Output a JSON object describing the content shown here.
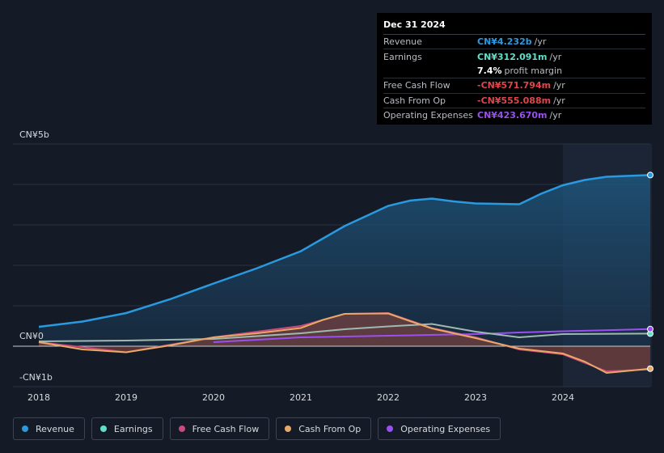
{
  "tooltip": {
    "date": "Dec 31 2024",
    "rows": [
      {
        "label": "Revenue",
        "value": "CN¥4.232b",
        "unit": "/yr",
        "color": "#2a9ae0"
      },
      {
        "label": "Earnings",
        "value": "CN¥312.091m",
        "unit": "/yr",
        "color": "#5fe0cb"
      },
      {
        "label": "",
        "value": "7.4%",
        "unit": "profit margin",
        "color": "#ffffff"
      },
      {
        "label": "Free Cash Flow",
        "value": "-CN¥571.794m",
        "unit": "/yr",
        "color": "#e0454c"
      },
      {
        "label": "Cash From Op",
        "value": "-CN¥555.088m",
        "unit": "/yr",
        "color": "#e0454c"
      },
      {
        "label": "Operating Expenses",
        "value": "CN¥423.670m",
        "unit": "/yr",
        "color": "#9b4ff0"
      }
    ]
  },
  "legend": [
    {
      "label": "Revenue",
      "color": "#2a9ae0"
    },
    {
      "label": "Earnings",
      "color": "#5fe0cb"
    },
    {
      "label": "Free Cash Flow",
      "color": "#c84b7c"
    },
    {
      "label": "Cash From Op",
      "color": "#e8a867"
    },
    {
      "label": "Operating Expenses",
      "color": "#9b4ff0"
    }
  ],
  "chart_data": {
    "type": "line",
    "title": "",
    "ylabel_top": "CN¥5b",
    "ylabel_zero": "CN¥0",
    "ylabel_bottom": "-CN¥1b",
    "ylim": [
      -1.0,
      5.0
    ],
    "xlim": [
      2018.0,
      2025.0
    ],
    "x_ticks": [
      2018,
      2019,
      2020,
      2021,
      2022,
      2023,
      2024
    ],
    "x_tick_labels": [
      "2018",
      "2019",
      "2020",
      "2021",
      "2022",
      "2023",
      "2024"
    ],
    "highlight_from": 2024.0,
    "series": [
      {
        "name": "Revenue",
        "color": "#2a9ae0",
        "fill": true,
        "x": [
          2018.0,
          2018.5,
          2019.0,
          2019.5,
          2020.0,
          2020.5,
          2021.0,
          2021.5,
          2022.0,
          2022.25,
          2022.5,
          2022.75,
          2023.0,
          2023.5,
          2023.75,
          2024.0,
          2024.25,
          2024.5,
          2025.0
        ],
        "y": [
          0.48,
          0.61,
          0.82,
          1.16,
          1.55,
          1.93,
          2.35,
          2.97,
          3.47,
          3.6,
          3.65,
          3.58,
          3.53,
          3.51,
          3.77,
          3.98,
          4.11,
          4.19,
          4.232
        ]
      },
      {
        "name": "Earnings",
        "color": "#5fe0cb",
        "fill": false,
        "x": [
          2018.0,
          2019.0,
          2020.0,
          2021.0,
          2021.5,
          2022.0,
          2022.5,
          2023.0,
          2023.5,
          2024.0,
          2025.0
        ],
        "y": [
          0.12,
          0.14,
          0.18,
          0.32,
          0.42,
          0.49,
          0.55,
          0.36,
          0.22,
          0.3,
          0.312
        ]
      },
      {
        "name": "Free Cash Flow",
        "color": "#c84b7c",
        "fill": true,
        "x": [
          2018.0,
          2019.0,
          2020.0,
          2021.0,
          2021.5,
          2022.0,
          2022.5,
          2023.0,
          2023.5,
          2024.0,
          2024.5,
          2025.0
        ],
        "y": [
          0.1,
          -0.15,
          0.22,
          0.5,
          0.8,
          0.82,
          0.45,
          0.22,
          -0.08,
          -0.2,
          -0.62,
          -0.572
        ]
      },
      {
        "name": "Cash From Op",
        "color": "#e8a867",
        "fill": true,
        "x": [
          2018.0,
          2018.5,
          2019.0,
          2019.5,
          2020.0,
          2020.5,
          2021.0,
          2021.25,
          2021.5,
          2022.0,
          2022.25,
          2022.5,
          2023.0,
          2023.5,
          2024.0,
          2024.25,
          2024.5,
          2025.0
        ],
        "y": [
          0.1,
          -0.08,
          -0.15,
          0.02,
          0.22,
          0.32,
          0.45,
          0.65,
          0.8,
          0.81,
          0.62,
          0.44,
          0.2,
          -0.06,
          -0.18,
          -0.38,
          -0.66,
          -0.555
        ]
      },
      {
        "name": "Operating Expenses",
        "color": "#9b4ff0",
        "fill": false,
        "x": [
          2020.0,
          2021.0,
          2022.0,
          2022.5,
          2023.0,
          2023.5,
          2024.0,
          2025.0
        ],
        "y": [
          0.1,
          0.22,
          0.26,
          0.28,
          0.3,
          0.34,
          0.37,
          0.424
        ]
      }
    ]
  }
}
